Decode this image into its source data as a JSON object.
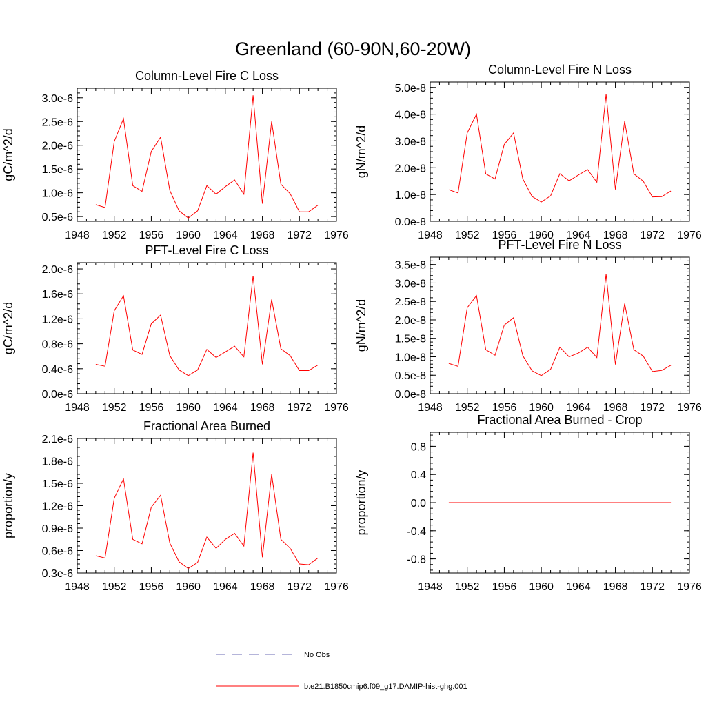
{
  "figure": {
    "title": "Greenland (60-90N,60-20W)"
  },
  "legend": [
    {
      "label": "No Obs",
      "color": "#6b6bb5",
      "dash": true
    },
    {
      "label": "b.e21.B1850cmip6.f09_g17.DAMIP-hist-ghg.001",
      "color": "#ff0000",
      "dash": false
    }
  ],
  "chart_data": [
    {
      "type": "line",
      "title": "Column-Level Fire C Loss",
      "ylabel": "gC/m^2/d",
      "xlim": [
        1948,
        1976
      ],
      "ylim": [
        4e-07,
        3.2e-06
      ],
      "xticks": [
        1948,
        1952,
        1956,
        1960,
        1964,
        1968,
        1972,
        1976
      ],
      "yticks": [
        5e-07,
        1e-06,
        1.5e-06,
        2e-06,
        2.5e-06,
        3e-06
      ],
      "ytick_labels": [
        "0.5e-6",
        "1.0e-6",
        "1.5e-6",
        "2.0e-6",
        "2.5e-6",
        "3.0e-6"
      ],
      "x": [
        1950,
        1951,
        1952,
        1953,
        1954,
        1955,
        1956,
        1957,
        1958,
        1959,
        1960,
        1961,
        1962,
        1963,
        1964,
        1965,
        1966,
        1967,
        1968,
        1969,
        1970,
        1971,
        1972,
        1973,
        1974
      ],
      "series": [
        {
          "name": "b.e21.B1850cmip6.f09_g17.DAMIP-hist-ghg.001",
          "color": "#ff0000",
          "values": [
            7.5e-07,
            6.9e-07,
            2.08e-06,
            2.56e-06,
            1.15e-06,
            1.03e-06,
            1.87e-06,
            2.17e-06,
            1.05e-06,
            6.2e-07,
            4.7e-07,
            6.2e-07,
            1.15e-06,
            9.7e-07,
            1.13e-06,
            1.27e-06,
            9.7e-07,
            3.05e-06,
            7.7e-07,
            2.5e-06,
            1.18e-06,
            9.8e-07,
            6e-07,
            6e-07,
            7.4e-07
          ]
        }
      ]
    },
    {
      "type": "line",
      "title": "Column-Level Fire N Loss",
      "ylabel": "gN/m^2/d",
      "xlim": [
        1948,
        1976
      ],
      "ylim": [
        0,
        5.2e-08
      ],
      "xticks": [
        1948,
        1952,
        1956,
        1960,
        1964,
        1968,
        1972,
        1976
      ],
      "yticks": [
        0,
        1e-08,
        2e-08,
        3e-08,
        4e-08,
        5e-08
      ],
      "ytick_labels": [
        "0.0e-8",
        "1.0e-8",
        "2.0e-8",
        "3.0e-8",
        "4.0e-8",
        "5.0e-8"
      ],
      "x": [
        1950,
        1951,
        1952,
        1953,
        1954,
        1955,
        1956,
        1957,
        1958,
        1959,
        1960,
        1961,
        1962,
        1963,
        1964,
        1965,
        1966,
        1967,
        1968,
        1969,
        1970,
        1971,
        1972,
        1973,
        1974
      ],
      "series": [
        {
          "name": "b.e21.B1850cmip6.f09_g17.DAMIP-hist-ghg.001",
          "color": "#ff0000",
          "values": [
            1.18e-08,
            1.06e-08,
            3.3e-08,
            4e-08,
            1.77e-08,
            1.58e-08,
            2.87e-08,
            3.3e-08,
            1.58e-08,
            9.3e-09,
            7.2e-09,
            9.5e-09,
            1.78e-08,
            1.51e-08,
            1.73e-08,
            1.93e-08,
            1.46e-08,
            4.75e-08,
            1.19e-08,
            3.73e-08,
            1.77e-08,
            1.5e-08,
            9.1e-09,
            9.2e-09,
            1.13e-08
          ]
        }
      ]
    },
    {
      "type": "line",
      "title": "PFT-Level Fire C Loss",
      "ylabel": "gC/m^2/d",
      "xlim": [
        1948,
        1976
      ],
      "ylim": [
        0,
        2.1e-06
      ],
      "xticks": [
        1948,
        1952,
        1956,
        1960,
        1964,
        1968,
        1972,
        1976
      ],
      "yticks": [
        0,
        4e-07,
        8e-07,
        1.2e-06,
        1.6e-06,
        2e-06
      ],
      "ytick_labels": [
        "0.0e-6",
        "0.4e-6",
        "0.8e-6",
        "1.2e-6",
        "1.6e-6",
        "2.0e-6"
      ],
      "x": [
        1950,
        1951,
        1952,
        1953,
        1954,
        1955,
        1956,
        1957,
        1958,
        1959,
        1960,
        1961,
        1962,
        1963,
        1964,
        1965,
        1966,
        1967,
        1968,
        1969,
        1970,
        1971,
        1972,
        1973,
        1974
      ],
      "series": [
        {
          "name": "b.e21.B1850cmip6.f09_g17.DAMIP-hist-ghg.001",
          "color": "#ff0000",
          "values": [
            4.7e-07,
            4.4e-07,
            1.33e-06,
            1.57e-06,
            7e-07,
            6.3e-07,
            1.12e-06,
            1.26e-06,
            6.1e-07,
            3.8e-07,
            2.9e-07,
            3.8e-07,
            7.1e-07,
            5.8e-07,
            6.7e-07,
            7.6e-07,
            5.9e-07,
            1.89e-06,
            4.7e-07,
            1.51e-06,
            7.2e-07,
            6.1e-07,
            3.7e-07,
            3.7e-07,
            4.6e-07
          ]
        }
      ]
    },
    {
      "type": "line",
      "title": "PFT-Level Fire N Loss",
      "ylabel": "gN/m^2/d",
      "xlim": [
        1948,
        1976
      ],
      "ylim": [
        0,
        3.7e-08
      ],
      "xticks": [
        1948,
        1952,
        1956,
        1960,
        1964,
        1968,
        1972,
        1976
      ],
      "yticks": [
        0,
        5e-09,
        1e-08,
        1.5e-08,
        2e-08,
        2.5e-08,
        3e-08,
        3.5e-08
      ],
      "ytick_labels": [
        "0.0e-8",
        "0.5e-8",
        "1.0e-8",
        "1.5e-8",
        "2.0e-8",
        "2.5e-8",
        "3.0e-8",
        "3.5e-8"
      ],
      "x": [
        1950,
        1951,
        1952,
        1953,
        1954,
        1955,
        1956,
        1957,
        1958,
        1959,
        1960,
        1961,
        1962,
        1963,
        1964,
        1965,
        1966,
        1967,
        1968,
        1969,
        1970,
        1971,
        1972,
        1973,
        1974
      ],
      "series": [
        {
          "name": "b.e21.B1850cmip6.f09_g17.DAMIP-hist-ghg.001",
          "color": "#ff0000",
          "values": [
            8.2e-09,
            7.4e-09,
            2.33e-08,
            2.66e-08,
            1.19e-08,
            1.04e-08,
            1.86e-08,
            2.06e-08,
            1.03e-08,
            6.2e-09,
            4.9e-09,
            6.6e-09,
            1.26e-08,
            1e-08,
            1.1e-08,
            1.26e-08,
            9.8e-09,
            3.24e-08,
            7.9e-09,
            2.44e-08,
            1.19e-08,
            1.02e-08,
            6e-09,
            6.3e-09,
            7.7e-09
          ]
        }
      ]
    },
    {
      "type": "line",
      "title": "Fractional Area Burned",
      "ylabel": "proportion/y",
      "xlim": [
        1948,
        1976
      ],
      "ylim": [
        3e-07,
        2.1e-06
      ],
      "xticks": [
        1948,
        1952,
        1956,
        1960,
        1964,
        1968,
        1972,
        1976
      ],
      "yticks": [
        3e-07,
        6e-07,
        9e-07,
        1.2e-06,
        1.5e-06,
        1.8e-06,
        2.1e-06
      ],
      "ytick_labels": [
        "0.3e-6",
        "0.6e-6",
        "0.9e-6",
        "1.2e-6",
        "1.5e-6",
        "1.8e-6",
        "2.1e-6"
      ],
      "x": [
        1950,
        1951,
        1952,
        1953,
        1954,
        1955,
        1956,
        1957,
        1958,
        1959,
        1960,
        1961,
        1962,
        1963,
        1964,
        1965,
        1966,
        1967,
        1968,
        1969,
        1970,
        1971,
        1972,
        1973,
        1974
      ],
      "series": [
        {
          "name": "b.e21.B1850cmip6.f09_g17.DAMIP-hist-ghg.001",
          "color": "#ff0000",
          "values": [
            5.3e-07,
            5e-07,
            1.3e-06,
            1.56e-06,
            7.5e-07,
            6.9e-07,
            1.18e-06,
            1.34e-06,
            7e-07,
            4.5e-07,
            3.6e-07,
            4.4e-07,
            7.8e-07,
            6.3e-07,
            7.5e-07,
            8.3e-07,
            6.6e-07,
            1.91e-06,
            5.1e-07,
            1.62e-06,
            7.5e-07,
            6.3e-07,
            4.2e-07,
            4.1e-07,
            5e-07
          ]
        }
      ]
    },
    {
      "type": "line",
      "title": "Fractional Area Burned - Crop",
      "ylabel": "proportion/y",
      "xlim": [
        1948,
        1976
      ],
      "ylim": [
        -1.0,
        1.0
      ],
      "xticks": [
        1948,
        1952,
        1956,
        1960,
        1964,
        1968,
        1972,
        1976
      ],
      "yticks": [
        -0.8,
        -0.4,
        0.0,
        0.4,
        0.8
      ],
      "ytick_labels": [
        "-0.8",
        "-0.4",
        "0.0",
        "0.4",
        "0.8"
      ],
      "x": [
        1950,
        1974
      ],
      "series": [
        {
          "name": "b.e21.B1850cmip6.f09_g17.DAMIP-hist-ghg.001",
          "color": "#ff0000",
          "values": [
            0.0,
            0.0
          ]
        }
      ]
    }
  ]
}
